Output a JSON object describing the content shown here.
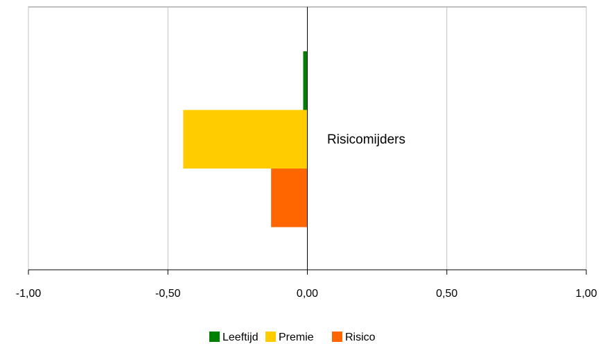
{
  "chart_data": {
    "type": "bar",
    "orientation": "horizontal",
    "categories": [
      "Risicomijders"
    ],
    "series": [
      {
        "name": "Leeftijd",
        "values": [
          -0.015
        ],
        "color": "#008000"
      },
      {
        "name": "Premie",
        "values": [
          -0.445
        ],
        "color": "#FFCC00"
      },
      {
        "name": "Risico",
        "values": [
          -0.13
        ],
        "color": "#FF6600"
      }
    ],
    "xlim": [
      -1.0,
      1.0
    ],
    "xticks": [
      -1.0,
      -0.5,
      0.0,
      0.5,
      1.0
    ],
    "xtick_labels": [
      "-1,00",
      "-0,50",
      "0,00",
      "0,50",
      "1,00"
    ],
    "grid": "vertical",
    "legend_position": "bottom",
    "title": "",
    "xlabel": "",
    "ylabel": ""
  }
}
